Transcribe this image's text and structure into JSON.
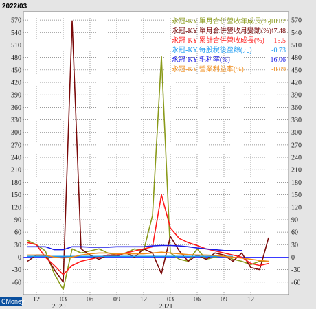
{
  "date_label": "2022/03",
  "watermark": "CMoney",
  "colors": {
    "background": "#e5e5e5",
    "plot_bg": "#ffffff",
    "grid": "#7a7a7a",
    "baseline": "#3a3aff",
    "watermark_bg": "#0a4f9e"
  },
  "chart_data": {
    "type": "line",
    "ylim": [
      -90,
      590
    ],
    "y_ticks": [
      -60,
      -30,
      0,
      30,
      60,
      90,
      120,
      150,
      180,
      210,
      240,
      270,
      300,
      330,
      360,
      390,
      420,
      450,
      480,
      510,
      540,
      570
    ],
    "x_count": 28,
    "x_ticks": [
      {
        "index": 1,
        "label": "12"
      },
      {
        "index": 4,
        "label": "03"
      },
      {
        "index": 7,
        "label": "06"
      },
      {
        "index": 10,
        "label": "09"
      },
      {
        "index": 13,
        "label": "12"
      },
      {
        "index": 16,
        "label": "03"
      },
      {
        "index": 19,
        "label": "06"
      },
      {
        "index": 22,
        "label": "09"
      },
      {
        "index": 25,
        "label": "12"
      }
    ],
    "year_labels": [
      {
        "index": 3.5,
        "label": "2020"
      },
      {
        "index": 15.5,
        "label": "2021"
      }
    ],
    "grid": true,
    "legend_position": "top-right",
    "series": [
      {
        "name": "永冠-KY 單月合併營收年成長(%)",
        "value_label": "-10.82",
        "color": "#8a9a1a",
        "values": [
          40,
          30,
          15,
          -40,
          -78,
          20,
          10,
          15,
          20,
          10,
          5,
          10,
          20,
          15,
          100,
          482,
          10,
          -5,
          -10,
          20,
          -5,
          0,
          5,
          -5,
          -10,
          -18,
          -10,
          -11
        ]
      },
      {
        "name": "永冠-KY 單月合併營收月變動(%)",
        "value_label": "47.48",
        "color": "#7a0a0a",
        "values": [
          -10,
          5,
          5,
          -30,
          -60,
          568,
          20,
          5,
          -5,
          5,
          3,
          10,
          0,
          20,
          10,
          -40,
          50,
          15,
          -10,
          5,
          -5,
          10,
          5,
          -10,
          10,
          -25,
          -30,
          47
        ]
      },
      {
        "name": "永冠-KY 累計合併營收成長(%)",
        "value_label": "-15.5",
        "color": "#ff1a1a",
        "values": [
          35,
          30,
          0,
          -20,
          -42,
          -20,
          -10,
          -5,
          0,
          5,
          5,
          10,
          15,
          20,
          25,
          150,
          70,
          45,
          35,
          28,
          20,
          15,
          10,
          5,
          0,
          -15,
          -20,
          -15
        ]
      },
      {
        "name": "永冠-KY 每股稅後盈餘(元)",
        "value_label": "-0.73",
        "color": "#1a9af0",
        "values": [
          2,
          2,
          2,
          2,
          2,
          2,
          2,
          2,
          2,
          2,
          2,
          2,
          2,
          2,
          2,
          2,
          2,
          2,
          2,
          2,
          2,
          2,
          2,
          2
        ]
      },
      {
        "name": "永冠-KY 毛利率(%)",
        "value_label": "16.06",
        "color": "#1a1ae6",
        "values": [
          25,
          25,
          25,
          18,
          18,
          25,
          25,
          24,
          24,
          24,
          25,
          25,
          25,
          25,
          27,
          28,
          28,
          27,
          25,
          22,
          20,
          18,
          16,
          16,
          16
        ]
      },
      {
        "name": "永冠-KY 營業利益率(%)",
        "value_label": "-0.09",
        "color": "#f08c1a",
        "values": [
          5,
          5,
          5,
          0,
          -2,
          0,
          5,
          8,
          10,
          10,
          8,
          8,
          8,
          8,
          10,
          12,
          10,
          8,
          6,
          5,
          5,
          4,
          2,
          0,
          -2,
          -5,
          -8,
          -10
        ]
      }
    ]
  }
}
